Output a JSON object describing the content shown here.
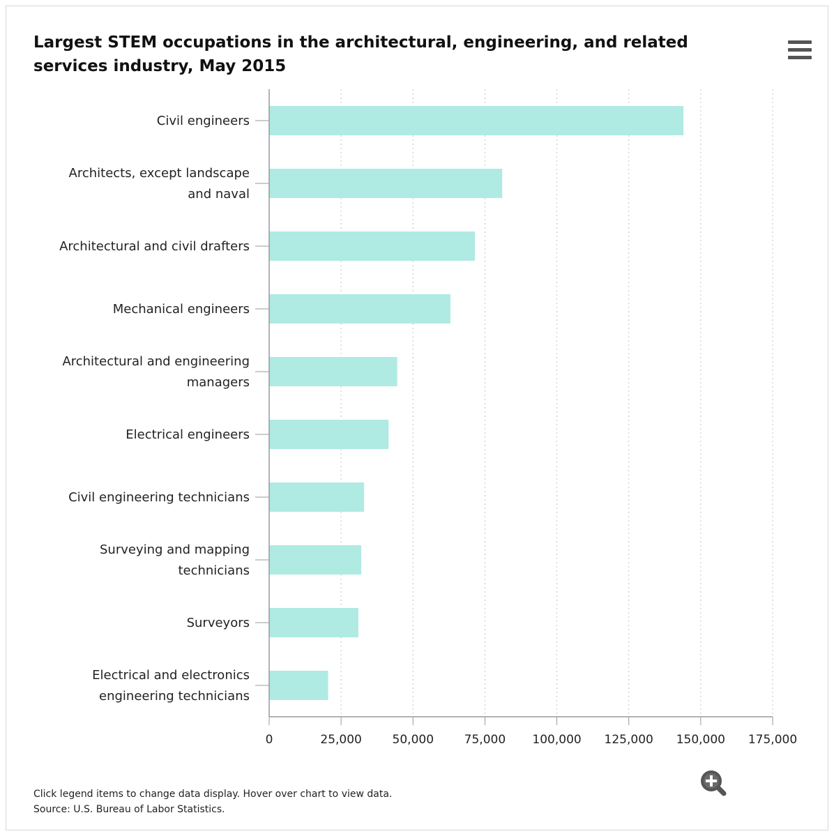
{
  "chart_data": {
    "type": "bar",
    "orientation": "horizontal",
    "title": "Largest STEM occupations in the architectural, engineering, and related services industry, May 2015",
    "categories": [
      [
        "Civil engineers"
      ],
      [
        "Architects, except landscape",
        "and naval"
      ],
      [
        "Architectural and civil drafters"
      ],
      [
        "Mechanical engineers"
      ],
      [
        "Architectural and engineering",
        "managers"
      ],
      [
        "Electrical engineers"
      ],
      [
        "Civil engineering technicians"
      ],
      [
        "Surveying and mapping",
        "technicians"
      ],
      [
        "Surveyors"
      ],
      [
        "Electrical and electronics",
        "engineering technicians"
      ]
    ],
    "values": [
      144000,
      81000,
      71500,
      63000,
      44500,
      41500,
      33000,
      32000,
      31000,
      20500
    ],
    "xlim": [
      0,
      175000
    ],
    "xticks": [
      0,
      25000,
      50000,
      75000,
      100000,
      125000,
      150000,
      175000
    ],
    "xtick_labels": [
      "0",
      "25,000",
      "50,000",
      "75,000",
      "100,000",
      "125,000",
      "150,000",
      "175,000"
    ],
    "grid": "vertical dotted",
    "bar_color": "#afeae3",
    "legend": "none"
  },
  "ui": {
    "menu_icon": "hamburger-menu-icon",
    "zoom_icon": "zoom-in-icon"
  },
  "footer": {
    "line1": "Click legend items to change data display. Hover over chart to view data.",
    "line2": "Source: U.S. Bureau of Labor Statistics."
  }
}
